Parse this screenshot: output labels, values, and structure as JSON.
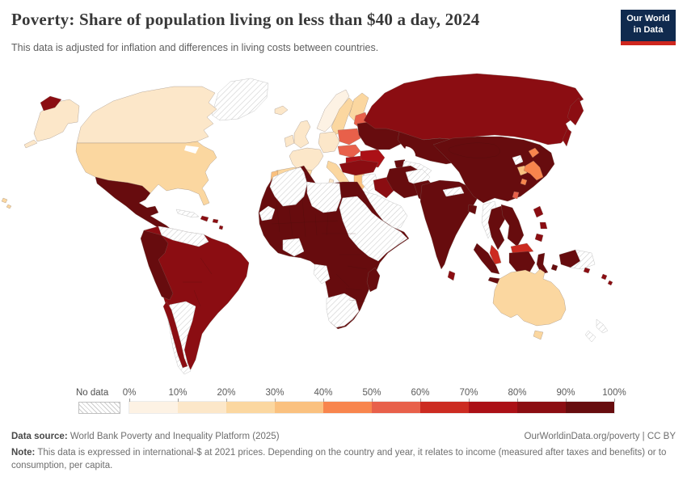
{
  "header": {
    "title": "Poverty: Share of population living on less than $40 a day, 2024",
    "subtitle": "This data is adjusted for inflation and differences in living costs between countries.",
    "logo_line1": "Our World",
    "logo_line2": "in Data",
    "logo_bg": "#102A4E",
    "logo_accent": "#CE261E"
  },
  "legend": {
    "no_data_label": "No data",
    "tick_labels": [
      "0%",
      "10%",
      "20%",
      "30%",
      "40%",
      "50%",
      "60%",
      "70%",
      "80%",
      "90%",
      "100%"
    ],
    "colors": [
      "#FDF2E4",
      "#FCE7C9",
      "#FBD7A0",
      "#FAC17F",
      "#F8854D",
      "#E8604A",
      "#CC2B21",
      "#AB1016",
      "#8B0D12",
      "#670C0E"
    ]
  },
  "map": {
    "regions": {
      "chukotka": 9,
      "alaska": 2,
      "canada": 2,
      "greenland": "no_data",
      "iceland": 2,
      "usa": 3,
      "hawaii": 3,
      "mexico_central_america": 10,
      "cuba": "no_data",
      "hispaniola": 9,
      "puerto_rico": 9,
      "lesser_antilles": 9,
      "venezuela_guyanas": "no_data",
      "colombia_peru_ecuador": 10,
      "brazil_base": 9,
      "argentina": "no_data",
      "chile": 9,
      "norway": 1,
      "sweden": 3,
      "finland": 3,
      "denmark": 2,
      "uk": 2,
      "ireland": 2,
      "france": 2,
      "germany_central": 2,
      "spain": 3,
      "portugal": 4,
      "italy": 3,
      "sicily": 3,
      "sardinia": 2,
      "poland": 6,
      "baltics": 6,
      "czech_hungary": 6,
      "balkans": 8,
      "greece": 4,
      "romania_bulgaria": 8,
      "ukraine_belarus": 10,
      "caucasus": 10,
      "russia": 9,
      "kazakhstan_central_asia": 10,
      "turkmenistan_uzbekistan": "no_data",
      "turkey": 9,
      "syria_levant": "no_data",
      "iraq": 9,
      "iran": 10,
      "arabia": "no_data",
      "afghanistan": "no_data",
      "pakistan": 10,
      "india": 10,
      "nepal": "no_data",
      "bangladesh": 10,
      "sri_lanka": 9,
      "china_mongolia": 10,
      "north_korea": "no_data",
      "south_korea": 4,
      "japan_hokkaido": 5,
      "japan_honshu": 5,
      "japan_kyushu": 5,
      "taiwan": 6,
      "myanmar": "no_data",
      "thailand": 10,
      "vietnam_laos_cambodia": 10,
      "malaysia_peninsula": 7,
      "malaysia_borneo": 7,
      "sumatra": 10,
      "java": 10,
      "borneo_indonesia": 10,
      "sulawesi": 10,
      "moluccas": 10,
      "new_guinea_west": 10,
      "papua_new_guinea": "no_data",
      "philippines_n": 9,
      "philippines_c": 9,
      "philippines_s": 9,
      "solomon": 9,
      "fiji": 9,
      "vanuatu": 9,
      "africa_base": 10,
      "western_sahara": "no_data",
      "algeria": "no_data",
      "libya": "no_data",
      "sudan_horn": "no_data",
      "ivory_coast_ghana": "no_data",
      "gabon_congo": "no_data",
      "southern_africa": "no_data",
      "madagascar": 10,
      "australia": 3,
      "tasmania": 3,
      "new_zealand_n": "no_data",
      "new_zealand_s": "no_data"
    }
  },
  "footer": {
    "source_label": "Data source:",
    "source_text": " World Bank Poverty and Inequality Platform (2025)",
    "link_text": "OurWorldinData.org/poverty | CC BY",
    "note_label": "Note:",
    "note_text": " This data is expressed in international-$ at 2021 prices. Depending on the country and year, it relates to income (measured after taxes and benefits) or to consumption, per capita."
  },
  "chart_data": {
    "type": "heatmap",
    "subtype": "choropleth_world_map",
    "title": "Poverty: Share of population living on less than $40 a day, 2024",
    "unit": "% of population",
    "legend_bins": [
      "0-10%",
      "10-20%",
      "20-30%",
      "30-40%",
      "40-50%",
      "50-60%",
      "60-70%",
      "70-80%",
      "80-90%",
      "90-100%"
    ],
    "no_data_label": "No data",
    "region_values": {
      "Canada": "10-20%",
      "United States": "20-30%",
      "Alaska": "10-20%",
      "Greenland": "No data",
      "Mexico & Central America": "90-100%",
      "Cuba": "No data",
      "Haiti & Dominican Republic": "80-90%",
      "Colombia, Ecuador & Peru": "90-100%",
      "Brazil, Bolivia, Paraguay & Uruguay": "80-90%",
      "Chile": "80-90%",
      "Venezuela & Guyanas": "No data",
      "Argentina": "No data",
      "Iceland": "10-20%",
      "Norway": "0-10%",
      "Sweden": "20-30%",
      "Finland": "20-30%",
      "United Kingdom": "10-20%",
      "Ireland": "10-20%",
      "France": "10-20%",
      "Germany & Central Europe": "10-20%",
      "Spain": "20-30%",
      "Portugal": "30-40%",
      "Italy": "20-30%",
      "Greece": "30-40%",
      "Poland": "50-60%",
      "Baltic states": "50-60%",
      "Czechia, Slovakia & Hungary": "50-60%",
      "Balkans": "70-80%",
      "Romania & Bulgaria": "70-80%",
      "Ukraine & Belarus": "90-100%",
      "Russia": "80-90%",
      "Turkey": "80-90%",
      "Caucasus": "90-100%",
      "Kazakhstan & Central Asia": "90-100%",
      "Turkmenistan & Uzbekistan": "No data",
      "Syria & Levant": "No data",
      "Iraq": "80-90%",
      "Iran": "90-100%",
      "Arabian Peninsula": "No data",
      "Afghanistan": "No data",
      "Pakistan": "90-100%",
      "India": "90-100%",
      "Nepal": "No data",
      "Bangladesh": "90-100%",
      "Sri Lanka": "80-90%",
      "China & Mongolia": "90-100%",
      "North Korea": "No data",
      "South Korea": "30-40%",
      "Japan": "40-50%",
      "Taiwan": "50-60%",
      "Myanmar": "No data",
      "Thailand": "90-100%",
      "Vietnam, Laos & Cambodia": "90-100%",
      "Malaysia": "60-70%",
      "Indonesia": "90-100%",
      "Philippines": "80-90%",
      "New Guinea (Indonesian side)": "90-100%",
      "Papua New Guinea": "No data",
      "Fiji & Melanesia": "80-90%",
      "Morocco": "90-100%",
      "Tunisia": "90-100%",
      "Algeria": "No data",
      "Libya": "No data",
      "Western Sahara": "No data",
      "Egypt": "90-100%",
      "West Africa & Sahel": "90-100%",
      "Cote d'Ivoire & Ghana": "No data",
      "Sudan & Horn of Africa": "No data",
      "Ethiopia": "90-100%",
      "Central & East Africa": "90-100%",
      "Gabon & Congo": "No data",
      "Southern Africa": "No data",
      "Madagascar": "90-100%",
      "Australia": "20-30%",
      "New Zealand": "No data",
      "Hawaii": "20-30%"
    }
  }
}
